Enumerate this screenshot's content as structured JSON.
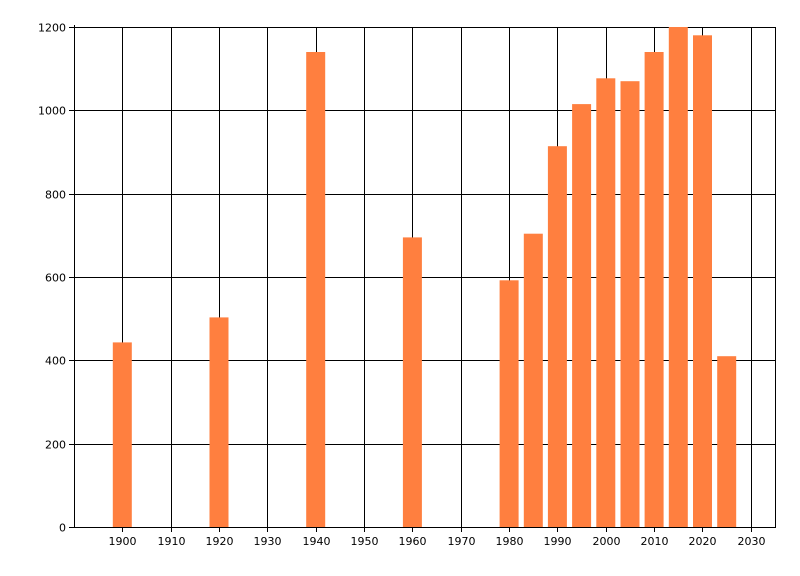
{
  "chart_data": {
    "type": "bar",
    "title": "",
    "xlabel": "",
    "ylabel": "",
    "x": [
      1900,
      1920,
      1940,
      1960,
      1980,
      1985,
      1990,
      1995,
      2000,
      2005,
      2010,
      2015,
      2020,
      2025
    ],
    "values": [
      443,
      503,
      1140,
      695,
      592,
      704,
      914,
      1015,
      1077,
      1070,
      1140,
      1200,
      1180,
      410
    ],
    "xlim": [
      1890,
      2035
    ],
    "ylim": [
      0,
      1200
    ],
    "xticks": [
      1900,
      1910,
      1920,
      1930,
      1940,
      1950,
      1960,
      1970,
      1980,
      1990,
      2000,
      2010,
      2020,
      2030
    ],
    "yticks": [
      0,
      200,
      400,
      600,
      800,
      1000,
      1200
    ],
    "grid": true,
    "legend": "none",
    "bar_color": "#ff7f3f"
  }
}
